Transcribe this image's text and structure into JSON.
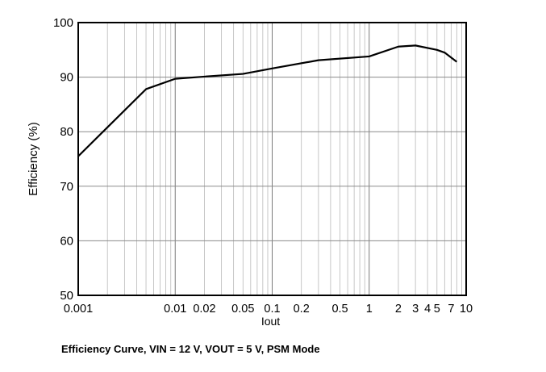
{
  "chart_data": {
    "type": "line",
    "x_scale": "log",
    "xlabel": "Iout",
    "ylabel": "Efficiency (%)",
    "xlim": [
      0.001,
      10
    ],
    "ylim": [
      50,
      100
    ],
    "grid": true,
    "x_ticks": [
      {
        "value": 0.001,
        "label": "0.001"
      },
      {
        "value": 0.01,
        "label": "0.01"
      },
      {
        "value": 0.02,
        "label": "0.02"
      },
      {
        "value": 0.05,
        "label": "0.05"
      },
      {
        "value": 0.1,
        "label": "0.1"
      },
      {
        "value": 0.2,
        "label": "0.2"
      },
      {
        "value": 0.5,
        "label": "0.5"
      },
      {
        "value": 1,
        "label": "1"
      },
      {
        "value": 2,
        "label": "2"
      },
      {
        "value": 3,
        "label": "3"
      },
      {
        "value": 4,
        "label": "4"
      },
      {
        "value": 5,
        "label": "5"
      },
      {
        "value": 7,
        "label": "7"
      },
      {
        "value": 10,
        "label": "10"
      }
    ],
    "y_ticks": [
      50,
      60,
      70,
      80,
      90,
      100
    ],
    "series": [
      {
        "x": [
          0.001,
          0.005,
          0.01,
          0.02,
          0.05,
          0.1,
          0.3,
          1,
          2,
          3,
          5,
          6,
          8
        ],
        "y": [
          75.5,
          87.8,
          89.7,
          90.1,
          90.6,
          91.6,
          93.1,
          93.8,
          95.6,
          95.8,
          95.0,
          94.5,
          92.8
        ]
      }
    ]
  },
  "caption": "Efficiency Curve, VIN = 12 V, VOUT = 5 V, PSM Mode"
}
